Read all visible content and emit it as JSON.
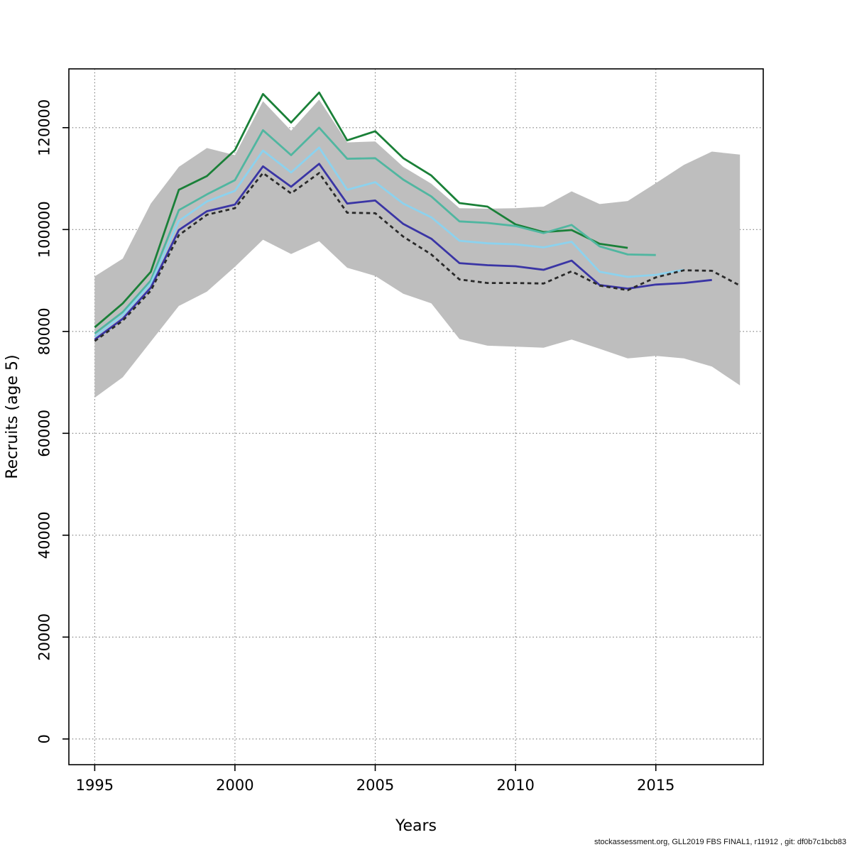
{
  "footer": {
    "text": "stockassessment.org, GLL2019 FBS FINAL1, r11912 , git: df0b7c1bcb83"
  },
  "chart_data": {
    "type": "line",
    "title": "",
    "xlabel": "Years",
    "ylabel": "Recruits (age 5)",
    "x_ticks": [
      1995,
      2000,
      2005,
      2010,
      2015
    ],
    "y_ticks": [
      0,
      20000,
      40000,
      60000,
      80000,
      100000,
      120000
    ],
    "xlim": [
      1994.08,
      2018.83
    ],
    "ylim": [
      -5050,
      131540
    ],
    "grid": "dotted",
    "grid_color": "#7a7a7a",
    "legend": "none",
    "band": {
      "name": "confidence-band-final-run",
      "color": "#bebebe",
      "years": [
        1995,
        1996,
        1997,
        1998,
        1999,
        2000,
        2001,
        2002,
        2003,
        2004,
        2005,
        2006,
        2007,
        2008,
        2009,
        2010,
        2011,
        2012,
        2013,
        2014,
        2015,
        2016,
        2017,
        2018
      ],
      "upper": [
        90800,
        94300,
        105100,
        112300,
        116000,
        114600,
        125200,
        119400,
        125500,
        117100,
        117300,
        112300,
        109000,
        104200,
        104100,
        104200,
        104500,
        107500,
        105000,
        105600,
        109100,
        112700,
        115300,
        114700
      ],
      "lower": [
        67000,
        71000,
        78000,
        85000,
        87800,
        92700,
        98000,
        95200,
        97700,
        92500,
        90900,
        87400,
        85500,
        78500,
        77200,
        77000,
        76800,
        78400,
        76600,
        74700,
        75200,
        74700,
        73100,
        69400
      ]
    },
    "series": [
      {
        "name": "run-ending-2014-green",
        "color": "#1a8038",
        "style": "solid",
        "years": [
          1995,
          1996,
          1997,
          1998,
          1999,
          2000,
          2001,
          2002,
          2003,
          2004,
          2005,
          2006,
          2007,
          2008,
          2009,
          2010,
          2011,
          2012,
          2013,
          2014
        ],
        "values": [
          80800,
          85500,
          91700,
          107800,
          110500,
          115600,
          126600,
          121000,
          126900,
          117500,
          119300,
          114000,
          110600,
          105200,
          104500,
          101000,
          99500,
          99900,
          97200,
          96400
        ]
      },
      {
        "name": "run-ending-2015-teal",
        "color": "#50b6a0",
        "style": "solid",
        "years": [
          1995,
          1996,
          1997,
          1998,
          1999,
          2000,
          2001,
          2002,
          2003,
          2004,
          2005,
          2006,
          2007,
          2008,
          2009,
          2010,
          2011,
          2012,
          2013,
          2014,
          2015
        ],
        "values": [
          79600,
          83800,
          90000,
          103800,
          106900,
          109700,
          119500,
          114600,
          120000,
          113900,
          114000,
          109800,
          106500,
          101600,
          101300,
          100700,
          99300,
          100900,
          96700,
          95100,
          95000
        ]
      },
      {
        "name": "run-ending-2016-lightblue",
        "color": "#8cd2ee",
        "style": "solid",
        "years": [
          1995,
          1996,
          1997,
          1998,
          1999,
          2000,
          2001,
          2002,
          2003,
          2004,
          2005,
          2006,
          2007,
          2008,
          2009,
          2010,
          2011,
          2012,
          2013,
          2014,
          2015,
          2016
        ],
        "values": [
          79000,
          83200,
          89400,
          101700,
          105500,
          107600,
          115500,
          111200,
          116100,
          107800,
          109300,
          105100,
          102400,
          97800,
          97300,
          97100,
          96500,
          97600,
          91700,
          90700,
          91100,
          92100
        ]
      },
      {
        "name": "run-ending-2017-darkblue",
        "color": "#3a35a5",
        "style": "solid",
        "years": [
          1995,
          1996,
          1997,
          1998,
          1999,
          2000,
          2001,
          2002,
          2003,
          2004,
          2005,
          2006,
          2007,
          2008,
          2009,
          2010,
          2011,
          2012,
          2013,
          2014,
          2015,
          2016,
          2017
        ],
        "values": [
          78400,
          82500,
          88600,
          99900,
          103600,
          104900,
          112400,
          108400,
          112900,
          105100,
          105700,
          101100,
          98200,
          93400,
          93000,
          92800,
          92100,
          93900,
          89100,
          88400,
          89200,
          89500,
          90100
        ]
      },
      {
        "name": "final-run-2018-black-dashed",
        "color": "#2a2a2a",
        "style": "dashed",
        "years": [
          1995,
          1996,
          1997,
          1998,
          1999,
          2000,
          2001,
          2002,
          2003,
          2004,
          2005,
          2006,
          2007,
          2008,
          2009,
          2010,
          2011,
          2012,
          2013,
          2014,
          2015,
          2016,
          2017,
          2018
        ],
        "values": [
          78100,
          82100,
          88000,
          98900,
          102900,
          104200,
          111100,
          107100,
          111100,
          103300,
          103200,
          98600,
          95100,
          90200,
          89500,
          89500,
          89400,
          91800,
          89000,
          88100,
          90600,
          92000,
          91900,
          89000
        ]
      }
    ]
  }
}
